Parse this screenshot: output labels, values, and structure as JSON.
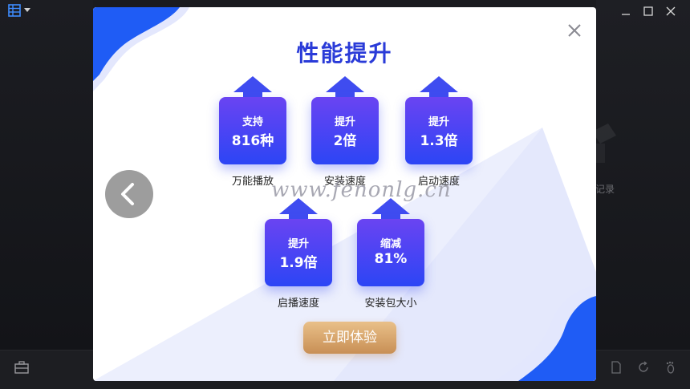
{
  "player": {
    "history_text": "记录"
  },
  "dialog": {
    "title": "性能提升",
    "features": [
      {
        "line1": "支持",
        "line2": "816种",
        "caption": "万能播放"
      },
      {
        "line1": "提升",
        "line2": "2倍",
        "caption": "安装速度"
      },
      {
        "line1": "提升",
        "line2": "1.3倍",
        "caption": "启动速度"
      },
      {
        "line1": "提升",
        "line2": "1.9倍",
        "caption": "启播速度"
      },
      {
        "line1": "缩减",
        "line2": "81%",
        "caption": "安装包大小"
      }
    ],
    "cta_label": "立即体验",
    "watermark": "www.fenonlg.cn"
  },
  "colors": {
    "title": "#2a3bd8",
    "card_top": "#6a44f2",
    "card_bottom": "#2c45f5",
    "cta_top": "#e9c089",
    "cta_bottom": "#c88f55",
    "accent_blue": "#1f5cf5"
  },
  "icons": [
    "menu-icon",
    "dropdown-icon",
    "minimize-icon",
    "maximize-icon",
    "close-icon",
    "back-arrow-icon",
    "toolbox-icon",
    "file-icon",
    "refresh-icon",
    "footprint-icon"
  ]
}
